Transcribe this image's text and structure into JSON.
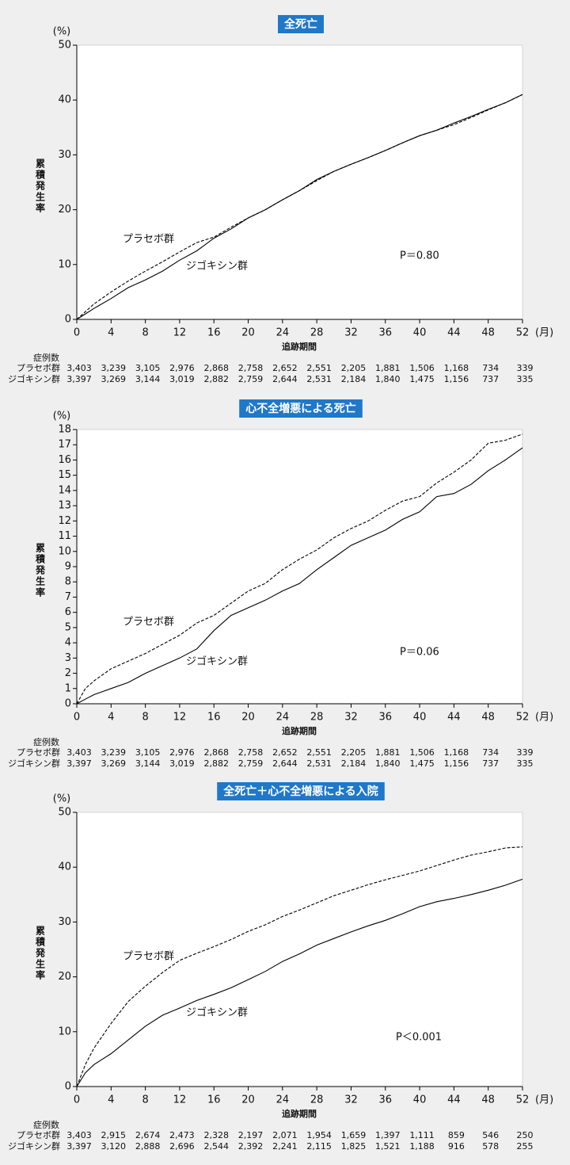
{
  "chart_data": [
    {
      "type": "line",
      "title": "全死亡",
      "y_unit": "(%)",
      "y_label": "累積発生率",
      "x_label": "追跡期間",
      "x_unit": "(月)",
      "x": [
        0,
        1,
        2,
        4,
        6,
        8,
        10,
        12,
        14,
        16,
        18,
        20,
        22,
        24,
        26,
        28,
        30,
        32,
        34,
        36,
        38,
        40,
        42,
        44,
        46,
        48,
        50,
        52
      ],
      "xlim": [
        0,
        52
      ],
      "xticks": [
        0,
        4,
        8,
        12,
        16,
        20,
        24,
        28,
        32,
        36,
        40,
        44,
        48,
        52
      ],
      "ylim": [
        0,
        50
      ],
      "yticks": [
        0,
        10,
        20,
        30,
        40,
        50
      ],
      "series": [
        {
          "name": "プラセボ群",
          "color": "#000000",
          "dash": "dashed",
          "values": [
            0,
            1.4,
            2.8,
            5,
            7,
            8.8,
            10.5,
            12.3,
            14,
            15,
            16.8,
            18.5,
            20,
            21.8,
            23.5,
            25.3,
            27,
            28.3,
            29.5,
            30.8,
            32.2,
            33.5,
            34.5,
            35.5,
            36.8,
            38.2,
            39.5,
            41
          ]
        },
        {
          "name": "ジゴキシン群",
          "color": "#000000",
          "dash": "solid",
          "values": [
            0,
            1.0,
            2,
            3.8,
            5.8,
            7.2,
            8.8,
            10.8,
            12.5,
            14.8,
            16.5,
            18.5,
            20,
            21.8,
            23.5,
            25.5,
            27,
            28.3,
            29.5,
            30.8,
            32.2,
            33.5,
            34.5,
            35.8,
            37,
            38.3,
            39.5,
            41
          ]
        }
      ],
      "annotation": "P＝0.80",
      "risk_table": {
        "title": "症例数",
        "rows": [
          {
            "label": "プラセボ群",
            "values": [
              "3,403",
              "3,239",
              "3,105",
              "2,976",
              "2,868",
              "2,758",
              "2,652",
              "2,551",
              "2,205",
              "1,881",
              "1,506",
              "1,168",
              "734",
              "339"
            ]
          },
          {
            "label": "ジゴキシン群",
            "values": [
              "3,397",
              "3,269",
              "3,144",
              "3,019",
              "2,882",
              "2,759",
              "2,644",
              "2,531",
              "2,184",
              "1,840",
              "1,475",
              "1,156",
              "737",
              "335"
            ]
          }
        ]
      }
    },
    {
      "type": "line",
      "title": "心不全増悪による死亡",
      "y_unit": "(%)",
      "y_label": "累積発生率",
      "x_label": "追跡期間",
      "x_unit": "(月)",
      "x": [
        0,
        1,
        2,
        4,
        6,
        8,
        10,
        12,
        14,
        16,
        18,
        20,
        22,
        24,
        26,
        28,
        30,
        32,
        34,
        36,
        38,
        40,
        42,
        44,
        46,
        48,
        50,
        52
      ],
      "xlim": [
        0,
        52
      ],
      "xticks": [
        0,
        4,
        8,
        12,
        16,
        20,
        24,
        28,
        32,
        36,
        40,
        44,
        48,
        52
      ],
      "ylim": [
        0,
        18
      ],
      "yticks": [
        0,
        1,
        2,
        3,
        4,
        5,
        6,
        7,
        8,
        9,
        10,
        11,
        12,
        13,
        14,
        15,
        16,
        17,
        18
      ],
      "series": [
        {
          "name": "プラセボ群",
          "color": "#000000",
          "dash": "dashed",
          "values": [
            0,
            1.0,
            1.5,
            2.3,
            2.8,
            3.3,
            3.9,
            4.5,
            5.3,
            5.8,
            6.6,
            7.4,
            7.9,
            8.8,
            9.5,
            10.1,
            10.9,
            11.5,
            12.0,
            12.7,
            13.3,
            13.6,
            14.5,
            15.2,
            16.0,
            17.1,
            17.3,
            17.7
          ]
        },
        {
          "name": "ジゴキシン群",
          "color": "#000000",
          "dash": "solid",
          "values": [
            0,
            0.3,
            0.6,
            1.0,
            1.4,
            2.0,
            2.5,
            3.0,
            3.6,
            4.8,
            5.8,
            6.3,
            6.8,
            7.4,
            7.9,
            8.8,
            9.6,
            10.4,
            10.9,
            11.4,
            12.1,
            12.6,
            13.6,
            13.8,
            14.4,
            15.3,
            16.0,
            16.8
          ]
        }
      ],
      "annotation": "P＝0.06",
      "risk_table": {
        "title": "症例数",
        "rows": [
          {
            "label": "プラセボ群",
            "values": [
              "3,403",
              "3,239",
              "3,105",
              "2,976",
              "2,868",
              "2,758",
              "2,652",
              "2,551",
              "2,205",
              "1,881",
              "1,506",
              "1,168",
              "734",
              "339"
            ]
          },
          {
            "label": "ジゴキシン群",
            "values": [
              "3,397",
              "3,269",
              "3,144",
              "3,019",
              "2,882",
              "2,759",
              "2,644",
              "2,531",
              "2,184",
              "1,840",
              "1,475",
              "1,156",
              "737",
              "335"
            ]
          }
        ]
      }
    },
    {
      "type": "line",
      "title": "全死亡＋心不全増悪による入院",
      "y_unit": "(%)",
      "y_label": "累積発生率",
      "x_label": "追跡期間",
      "x_unit": "(月)",
      "x": [
        0,
        1,
        2,
        4,
        6,
        8,
        10,
        12,
        14,
        16,
        18,
        20,
        22,
        24,
        26,
        28,
        30,
        32,
        34,
        36,
        38,
        40,
        42,
        44,
        46,
        48,
        50,
        52
      ],
      "xlim": [
        0,
        52
      ],
      "xticks": [
        0,
        4,
        8,
        12,
        16,
        20,
        24,
        28,
        32,
        36,
        40,
        44,
        48,
        52
      ],
      "ylim": [
        0,
        50
      ],
      "yticks": [
        0,
        10,
        20,
        30,
        40,
        50
      ],
      "series": [
        {
          "name": "プラセボ群",
          "color": "#000000",
          "dash": "dashed",
          "values": [
            0,
            4,
            7,
            11.5,
            15.5,
            18.3,
            20.8,
            23,
            24.3,
            25.5,
            26.8,
            28.3,
            29.5,
            31,
            32.2,
            33.5,
            34.8,
            35.8,
            36.8,
            37.7,
            38.5,
            39.3,
            40.3,
            41.3,
            42.2,
            42.8,
            43.5,
            43.7
          ]
        },
        {
          "name": "ジゴキシン群",
          "color": "#000000",
          "dash": "solid",
          "values": [
            0,
            2.5,
            4,
            6,
            8.5,
            11,
            13,
            14.3,
            15.7,
            16.8,
            18,
            19.5,
            21,
            22.8,
            24.2,
            25.8,
            27,
            28.2,
            29.3,
            30.3,
            31.5,
            32.8,
            33.7,
            34.3,
            35,
            35.8,
            36.7,
            37.8
          ]
        }
      ],
      "annotation": "P＜0.001",
      "risk_table": {
        "title": "症例数",
        "rows": [
          {
            "label": "プラセボ群",
            "values": [
              "3,403",
              "2,915",
              "2,674",
              "2,473",
              "2,328",
              "2,197",
              "2,071",
              "1,954",
              "1,659",
              "1,397",
              "1,111",
              "859",
              "546",
              "250"
            ]
          },
          {
            "label": "ジゴキシン群",
            "values": [
              "3,397",
              "3,120",
              "2,888",
              "2,696",
              "2,544",
              "2,392",
              "2,241",
              "2,115",
              "1,825",
              "1,521",
              "1,188",
              "916",
              "578",
              "255"
            ]
          }
        ]
      }
    }
  ]
}
